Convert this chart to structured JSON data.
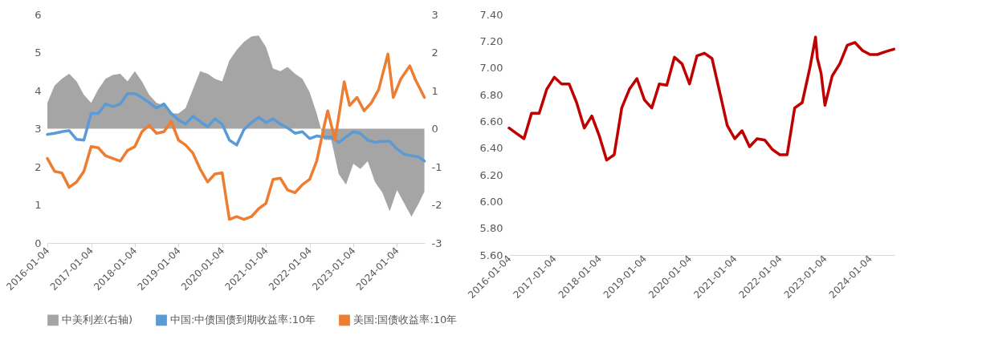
{
  "chart_data": [
    {
      "type": "line",
      "legend": "bottom",
      "x": [
        "2016-01-04",
        "2016-03-04",
        "2016-05-04",
        "2016-07-04",
        "2016-09-04",
        "2016-11-04",
        "2017-01-04",
        "2017-03-04",
        "2017-05-04",
        "2017-07-04",
        "2017-09-04",
        "2017-11-04",
        "2018-01-04",
        "2018-03-04",
        "2018-05-04",
        "2018-07-04",
        "2018-09-04",
        "2018-11-04",
        "2019-01-04",
        "2019-03-04",
        "2019-05-04",
        "2019-07-04",
        "2019-09-04",
        "2019-11-04",
        "2020-01-04",
        "2020-03-04",
        "2020-05-04",
        "2020-07-04",
        "2020-09-04",
        "2020-11-04",
        "2021-01-04",
        "2021-03-04",
        "2021-05-04",
        "2021-07-04",
        "2021-09-04",
        "2021-11-04",
        "2022-01-04",
        "2022-03-04",
        "2022-05-04",
        "2022-07-04",
        "2022-09-04",
        "2022-11-04",
        "2023-01-04",
        "2023-03-04",
        "2023-05-04",
        "2023-07-04",
        "2023-09-04",
        "2023-11-04",
        "2024-01-04",
        "2024-03-04",
        "2024-05-04",
        "2024-07-04",
        "2024-08-20"
      ],
      "series": [
        {
          "name": "中美利差(右轴)",
          "type": "area",
          "axis": "y2",
          "color": "#a5a5a5",
          "values": [
            0.68,
            1.13,
            1.31,
            1.44,
            1.24,
            0.89,
            0.68,
            1.03,
            1.31,
            1.41,
            1.44,
            1.24,
            1.51,
            1.24,
            0.89,
            0.68,
            0.61,
            0.4,
            0.4,
            0.54,
            1.03,
            1.51,
            1.44,
            1.31,
            1.24,
            1.79,
            2.07,
            2.28,
            2.42,
            2.45,
            2.14,
            1.58,
            1.51,
            1.62,
            1.44,
            1.31,
            0.96,
            0.4,
            -0.29,
            -0.3,
            -1.19,
            -1.47,
            -0.92,
            -1.06,
            -0.85,
            -1.4,
            -1.68,
            -2.17,
            -1.61,
            -1.96,
            -2.31,
            -1.96,
            -1.65
          ]
        },
        {
          "name": "中国:中债国债到期收益率:10年",
          "type": "line",
          "color": "#5b9bd5",
          "values": [
            2.85,
            2.88,
            2.92,
            2.95,
            2.72,
            2.7,
            3.4,
            3.4,
            3.65,
            3.58,
            3.65,
            3.92,
            3.92,
            3.82,
            3.68,
            3.54,
            3.65,
            3.4,
            3.23,
            3.12,
            3.33,
            3.19,
            3.05,
            3.26,
            3.12,
            2.7,
            2.57,
            2.98,
            3.16,
            3.3,
            3.16,
            3.26,
            3.12,
            3.02,
            2.88,
            2.92,
            2.74,
            2.81,
            2.78,
            2.78,
            2.64,
            2.78,
            2.92,
            2.88,
            2.7,
            2.64,
            2.67,
            2.67,
            2.47,
            2.33,
            2.29,
            2.26,
            2.15
          ]
        },
        {
          "name": "美国:国债收益率:10年",
          "type": "line",
          "color": "#ed7d31",
          "x": [
            "2016-01-04",
            "2016-03-04",
            "2016-05-04",
            "2016-07-04",
            "2016-09-04",
            "2016-11-04",
            "2017-01-04",
            "2017-03-04",
            "2017-05-04",
            "2017-07-04",
            "2017-09-04",
            "2017-11-04",
            "2018-01-04",
            "2018-03-04",
            "2018-05-04",
            "2018-07-04",
            "2018-09-04",
            "2018-11-04",
            "2019-01-04",
            "2019-03-04",
            "2019-05-04",
            "2019-07-04",
            "2019-09-04",
            "2019-11-04",
            "2020-01-04",
            "2020-03-04",
            "2020-05-04",
            "2020-07-04",
            "2020-09-04",
            "2020-11-04",
            "2021-01-04",
            "2021-03-04",
            "2021-05-04",
            "2021-07-04",
            "2021-09-04",
            "2021-11-04",
            "2022-01-04",
            "2022-03-04",
            "2022-05-04",
            "2022-06-04",
            "2022-08-04",
            "2022-10-20",
            "2022-12-04",
            "2023-02-04",
            "2023-04-04",
            "2023-06-04",
            "2023-08-04",
            "2023-10-20",
            "2023-12-04",
            "2024-02-04",
            "2024-04-20",
            "2024-06-04",
            "2024-08-20"
          ],
          "values": [
            2.22,
            1.88,
            1.84,
            1.46,
            1.6,
            1.88,
            2.53,
            2.5,
            2.29,
            2.22,
            2.15,
            2.43,
            2.53,
            2.92,
            3.09,
            2.88,
            2.92,
            3.19,
            2.7,
            2.57,
            2.36,
            1.94,
            1.6,
            1.81,
            1.84,
            0.62,
            0.69,
            0.62,
            0.69,
            0.9,
            1.04,
            1.67,
            1.7,
            1.39,
            1.32,
            1.53,
            1.67,
            2.15,
            3.05,
            3.47,
            2.7,
            4.23,
            3.61,
            3.82,
            3.47,
            3.68,
            4.03,
            4.96,
            3.82,
            4.3,
            4.65,
            4.3,
            3.82
          ]
        }
      ],
      "xlim": [
        "2016-01-04",
        "2024-08-23"
      ],
      "xticks": [
        "2016-01-04",
        "2017-01-04",
        "2018-01-04",
        "2019-01-04",
        "2020-01-04",
        "2021-01-04",
        "2022-01-04",
        "2023-01-04",
        "2024-01-04"
      ],
      "ylim": [
        0,
        6
      ],
      "yticks": [
        0,
        1,
        2,
        3,
        4,
        5,
        6
      ],
      "y2lim": [
        -3,
        3
      ],
      "y2ticks": [
        -3,
        -2,
        -1,
        0,
        1,
        2,
        3
      ]
    },
    {
      "type": "line",
      "legend": false,
      "x": [
        "2016-01-04",
        "2016-03-04",
        "2016-05-04",
        "2016-07-04",
        "2016-09-04",
        "2016-11-04",
        "2017-01-04",
        "2017-03-04",
        "2017-05-04",
        "2017-07-04",
        "2017-09-04",
        "2017-11-04",
        "2018-01-04",
        "2018-03-04",
        "2018-05-04",
        "2018-07-04",
        "2018-09-04",
        "2018-11-04",
        "2019-01-04",
        "2019-03-04",
        "2019-05-04",
        "2019-07-04",
        "2019-09-04",
        "2019-11-04",
        "2020-01-04",
        "2020-03-04",
        "2020-05-04",
        "2020-07-04",
        "2020-09-04",
        "2020-11-04",
        "2021-01-04",
        "2021-03-04",
        "2021-05-04",
        "2021-07-04",
        "2021-09-04",
        "2021-11-04",
        "2022-01-04",
        "2022-03-04",
        "2022-05-04",
        "2022-07-04",
        "2022-09-04",
        "2022-10-20",
        "2022-11-04",
        "2022-12-04",
        "2023-01-04",
        "2023-03-04",
        "2023-05-04",
        "2023-07-04",
        "2023-09-04",
        "2023-11-04",
        "2024-01-04",
        "2024-03-04",
        "2024-05-04",
        "2024-07-15"
      ],
      "series": [
        {
          "color": "#c00000",
          "values": [
            6.55,
            6.51,
            6.47,
            6.66,
            6.66,
            6.84,
            6.93,
            6.88,
            6.88,
            6.74,
            6.55,
            6.64,
            6.49,
            6.31,
            6.35,
            6.7,
            6.84,
            6.92,
            6.76,
            6.7,
            6.88,
            6.87,
            7.08,
            7.03,
            6.88,
            7.09,
            7.11,
            7.07,
            6.82,
            6.57,
            6.47,
            6.53,
            6.41,
            6.47,
            6.46,
            6.39,
            6.35,
            6.35,
            6.7,
            6.74,
            7.0,
            7.23,
            7.07,
            6.96,
            6.72,
            6.94,
            7.03,
            7.17,
            7.19,
            7.13,
            7.1,
            7.1,
            7.12,
            7.14
          ]
        }
      ],
      "xlim": [
        "2016-01-04",
        "2024-07-20"
      ],
      "xticks": [
        "2016-01-04",
        "2017-01-04",
        "2018-01-04",
        "2019-01-04",
        "2020-01-04",
        "2021-01-04",
        "2022-01-04",
        "2023-01-04",
        "2024-01-04"
      ],
      "ylim": [
        5.6,
        7.4
      ],
      "yticks": [
        {
          "value": 5.6,
          "label": "5.60"
        },
        {
          "value": 5.8,
          "label": "5.80"
        },
        {
          "value": 6.0,
          "label": "6.00"
        },
        {
          "value": 6.2,
          "label": "6.20"
        },
        {
          "value": 6.4,
          "label": "6.40"
        },
        {
          "value": 6.6,
          "label": "6.60"
        },
        {
          "value": 6.8,
          "label": "6.80"
        },
        {
          "value": 7.0,
          "label": "7.00"
        },
        {
          "value": 7.2,
          "label": "7.20"
        },
        {
          "value": 7.4,
          "label": "7.40"
        }
      ]
    }
  ]
}
